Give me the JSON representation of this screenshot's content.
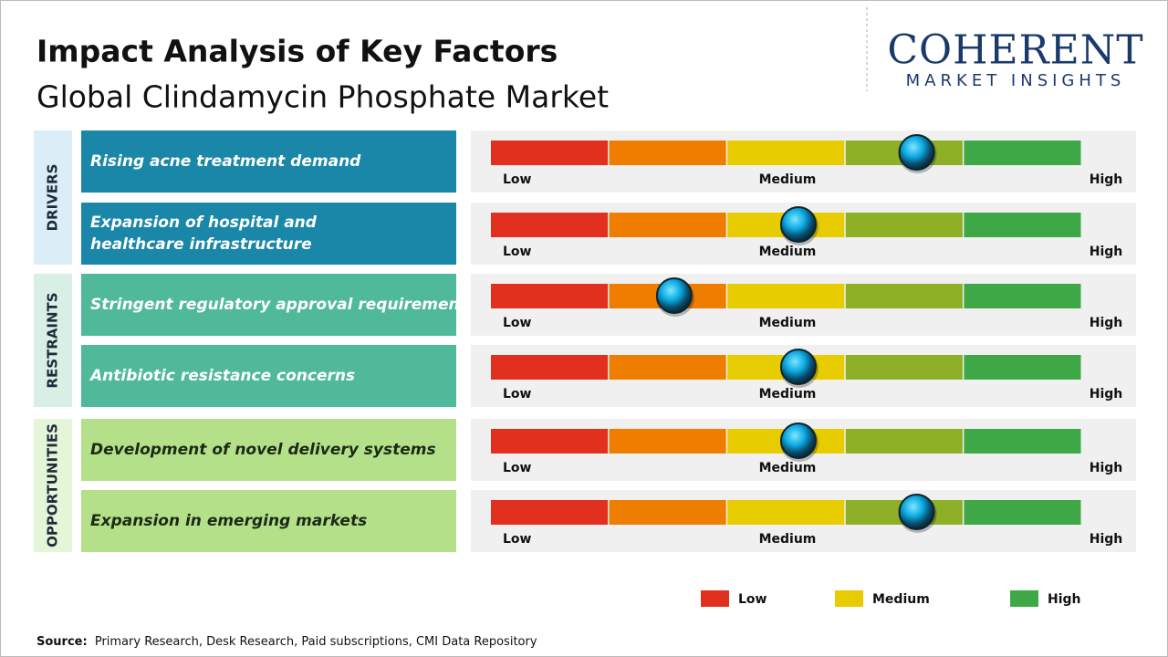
{
  "title": "Impact Analysis of Key Factors",
  "subtitle": "Global Clindamycin Phosphate Market",
  "logo": {
    "main": "COHERENT",
    "sub": "MARKET INSIGHTS"
  },
  "chart_data": {
    "type": "gauge",
    "xlim": [
      0,
      100
    ],
    "segment_colors": [
      "#e2301f",
      "#ee7d00",
      "#e6cc00",
      "#8db026",
      "#3fa846"
    ],
    "scale_labels": [
      "Low",
      "Medium",
      "High"
    ],
    "groups": [
      {
        "label": "DRIVERS",
        "color": "#1a87a8",
        "band": "#dbeef7",
        "text_color": "#ffffff",
        "factors": [
          {
            "name": "Rising acne treatment demand",
            "impact": 72
          },
          {
            "name": "Expansion of hospital and healthcare infrastructure",
            "impact": 52
          }
        ]
      },
      {
        "label": "RESTRAINTS",
        "color": "#4fb99a",
        "band": "#d8efe6",
        "text_color": "#ffffff",
        "factors": [
          {
            "name": "Stringent regulatory approval requirements",
            "impact": 31
          },
          {
            "name": "Antibiotic resistance concerns",
            "impact": 52
          }
        ]
      },
      {
        "label": "OPPORTUNITIES",
        "color": "#b4e08a",
        "band": "#e5f5d8",
        "text_color": "#1c2a14",
        "factors": [
          {
            "name": "Development of novel delivery systems",
            "impact": 52
          },
          {
            "name": "Expansion in emerging markets",
            "impact": 72
          }
        ]
      }
    ],
    "legend": [
      {
        "name": "Low",
        "color": "#e2301f"
      },
      {
        "name": "Medium",
        "color": "#e6cc00"
      },
      {
        "name": "High",
        "color": "#3fa846"
      }
    ]
  },
  "source": {
    "label": "Source:",
    "text": "Primary Research, Desk Research, Paid subscriptions, CMI Data Repository"
  }
}
